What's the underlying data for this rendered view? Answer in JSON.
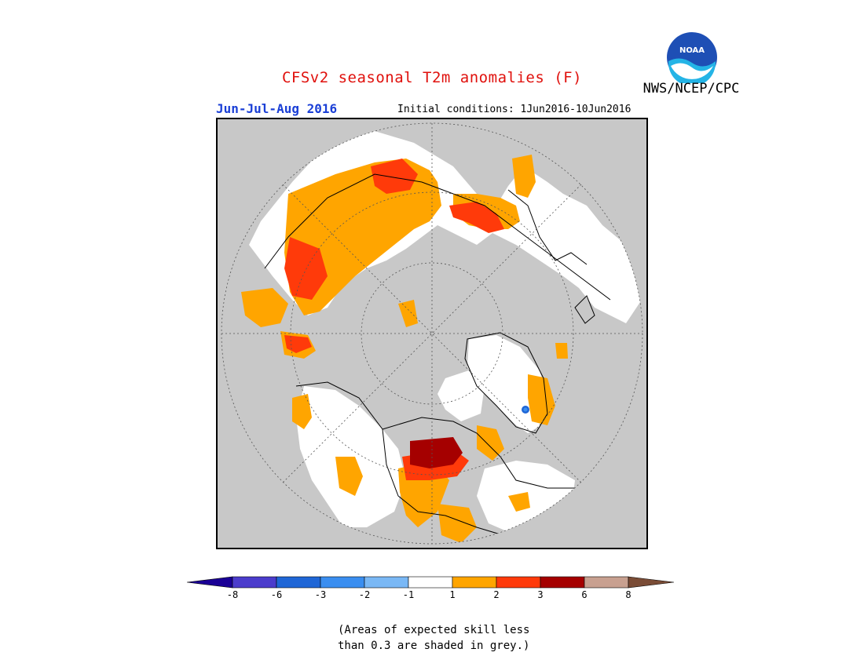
{
  "title": "CFSv2 seasonal T2m anomalies (F)",
  "agency": "NWS/NCEP/CPC",
  "logo_text": "NOAA",
  "season": "Jun-Jul-Aug 2016",
  "initial_conditions": "Initial conditions: 1Jun2016-10Jun2016",
  "colorbar": {
    "bins": [
      {
        "color": "#1a0096",
        "range": "< -8"
      },
      {
        "color": "#4b3ccc",
        "range": "-8 to -6"
      },
      {
        "color": "#1f66d6",
        "range": "-6 to -3"
      },
      {
        "color": "#3a8ef0",
        "range": "-3 to -2"
      },
      {
        "color": "#7ab8f5",
        "range": "-2 to -1"
      },
      {
        "color": "#ffffff",
        "range": "-1 to 1"
      },
      {
        "color": "#ffa500",
        "range": "1 to 2"
      },
      {
        "color": "#ff3a0a",
        "range": "2 to 3"
      },
      {
        "color": "#a50000",
        "range": "3 to 6"
      },
      {
        "color": "#c8a090",
        "range": "6 to 8"
      },
      {
        "color": "#7a4c36",
        "range": "> 8"
      }
    ],
    "tick_labels": [
      "-8",
      "-6",
      "-3",
      "-2",
      "-1",
      "1",
      "2",
      "3",
      "6",
      "8"
    ]
  },
  "note_lines": [
    "(Areas of expected skill less",
    "than 0.3 are shaded in grey.)"
  ],
  "colors": {
    "skill_grey": "#c8c8c8",
    "title_red": "#e0100c",
    "season_blue": "#1a3fd6"
  }
}
